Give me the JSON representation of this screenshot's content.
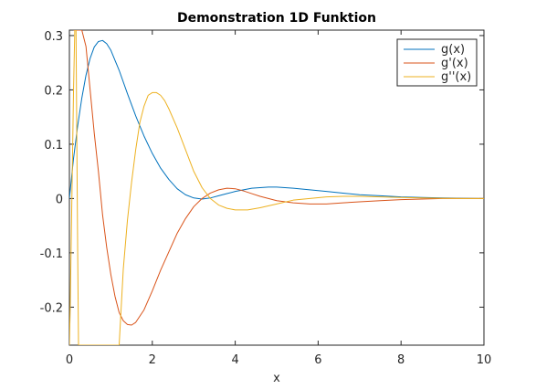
{
  "chart_data": {
    "type": "line",
    "title": "Demonstration 1D Funktion",
    "xlabel": "x",
    "ylabel": "",
    "xlim": [
      0,
      10
    ],
    "ylim": [
      -0.27,
      0.31
    ],
    "x_ticks": [
      0,
      2,
      4,
      6,
      8,
      10
    ],
    "x_tick_labels": [
      "0",
      "2",
      "4",
      "6",
      "8",
      "10"
    ],
    "y_ticks": [
      -0.2,
      -0.1,
      0,
      0.1,
      0.2,
      0.3
    ],
    "y_tick_labels": [
      "-0.2",
      "-0.1",
      "0",
      "0.1",
      "0.2",
      "0.3"
    ],
    "grid": false,
    "legend_position": "top-right",
    "series": [
      {
        "name": "g(x)",
        "color": "#0072bd",
        "x": [
          0,
          0.1,
          0.2,
          0.3,
          0.4,
          0.5,
          0.6,
          0.7,
          0.8,
          0.9,
          1.0,
          1.2,
          1.4,
          1.6,
          1.8,
          2.0,
          2.2,
          2.4,
          2.6,
          2.8,
          3.0,
          3.2,
          3.4,
          3.6,
          3.8,
          4.0,
          4.2,
          4.4,
          4.6,
          4.8,
          5.0,
          5.4,
          5.8,
          6.2,
          6.6,
          7.0,
          7.5,
          8.0,
          8.5,
          9.0,
          9.5,
          10.0
        ],
        "y": [
          0.0,
          0.074,
          0.134,
          0.185,
          0.227,
          0.258,
          0.279,
          0.289,
          0.291,
          0.285,
          0.273,
          0.236,
          0.193,
          0.152,
          0.115,
          0.083,
          0.056,
          0.035,
          0.018,
          0.007,
          0.001,
          -0.001,
          0.001,
          0.005,
          0.009,
          0.013,
          0.016,
          0.019,
          0.02,
          0.021,
          0.021,
          0.019,
          0.016,
          0.013,
          0.01,
          0.007,
          0.005,
          0.003,
          0.002,
          0.001,
          0.0005,
          0.0
        ]
      },
      {
        "name": "g'(x)",
        "color": "#d95319",
        "x": [
          0.1,
          0.15,
          0.2,
          0.3,
          0.4,
          0.5,
          0.6,
          0.7,
          0.8,
          0.9,
          1.0,
          1.1,
          1.2,
          1.3,
          1.4,
          1.5,
          1.6,
          1.8,
          2.0,
          2.2,
          2.4,
          2.6,
          2.8,
          3.0,
          3.2,
          3.4,
          3.6,
          3.8,
          4.0,
          4.2,
          4.4,
          4.6,
          4.8,
          5.0,
          5.4,
          5.8,
          6.2,
          6.6,
          7.0,
          7.5,
          8.0,
          8.5,
          9.0,
          9.5,
          10.0
        ],
        "y": [
          0.31,
          0.31,
          0.31,
          0.31,
          0.28,
          0.2,
          0.12,
          0.05,
          -0.03,
          -0.09,
          -0.14,
          -0.18,
          -0.21,
          -0.225,
          -0.232,
          -0.233,
          -0.228,
          -0.205,
          -0.17,
          -0.132,
          -0.098,
          -0.064,
          -0.037,
          -0.015,
          0.0,
          0.01,
          0.016,
          0.019,
          0.018,
          0.014,
          0.009,
          0.004,
          0.0,
          -0.004,
          -0.008,
          -0.01,
          -0.01,
          -0.008,
          -0.006,
          -0.004,
          -0.002,
          -0.001,
          0.0,
          0.0,
          0.0
        ]
      },
      {
        "name": "g''(x)",
        "color": "#edb120",
        "x": [
          0,
          0.02,
          0.05,
          0.08,
          0.1,
          0.13,
          0.16,
          0.18,
          0.2,
          0.22,
          0.25,
          1.2,
          1.25,
          1.3,
          1.4,
          1.5,
          1.6,
          1.7,
          1.8,
          1.9,
          2.0,
          2.1,
          2.2,
          2.3,
          2.4,
          2.6,
          2.8,
          3.0,
          3.2,
          3.4,
          3.6,
          3.8,
          4.0,
          4.3,
          4.6,
          5.0,
          5.4,
          5.8,
          6.2,
          6.6,
          7.0,
          7.5,
          8.0,
          8.5,
          9.0,
          9.5,
          10.0
        ],
        "y": [
          -0.27,
          -0.2,
          -0.05,
          0.1,
          0.2,
          0.31,
          0.31,
          0.1,
          -0.1,
          -0.27,
          -0.27,
          -0.27,
          -0.2,
          -0.13,
          -0.04,
          0.03,
          0.09,
          0.14,
          0.17,
          0.19,
          0.195,
          0.195,
          0.19,
          0.18,
          0.165,
          0.13,
          0.09,
          0.05,
          0.02,
          0.0,
          -0.012,
          -0.018,
          -0.021,
          -0.021,
          -0.017,
          -0.01,
          -0.003,
          0.0,
          0.003,
          0.004,
          0.004,
          0.003,
          0.002,
          0.001,
          0.0005,
          0.0,
          0.0
        ]
      }
    ]
  }
}
